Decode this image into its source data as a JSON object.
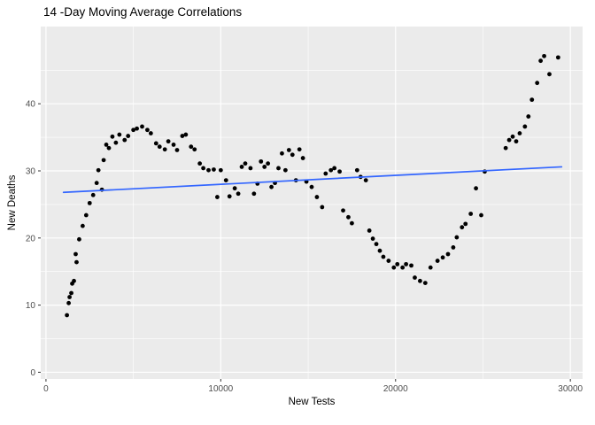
{
  "chart_data": {
    "type": "scatter",
    "title": "14 -Day Moving Average Correlations",
    "xlabel": "New Tests",
    "ylabel": "New Deaths",
    "xlim": [
      -300,
      30700
    ],
    "ylim": [
      -1,
      51.5
    ],
    "x_ticks": [
      0,
      10000,
      20000,
      30000
    ],
    "x_minor_ticks": [
      5000,
      15000,
      25000
    ],
    "y_ticks": [
      0,
      10,
      20,
      30,
      40
    ],
    "y_minor_ticks": [
      5,
      15,
      25,
      35,
      45
    ],
    "grid": true,
    "legend": "none",
    "panel_bg": "#EBEBEB",
    "grid_color": "#FFFFFF",
    "point_color": "#000000",
    "tick_label_color": "#4D4D4D",
    "tick_mark_color": "#333333",
    "trend": {
      "color": "#3366FF",
      "x1": 1000,
      "y1": 26.8,
      "x2": 29500,
      "y2": 30.6
    },
    "points": [
      [
        1200,
        8.5
      ],
      [
        1300,
        10.3
      ],
      [
        1350,
        11.2
      ],
      [
        1450,
        11.8
      ],
      [
        1500,
        13.2
      ],
      [
        1600,
        13.6
      ],
      [
        1700,
        17.6
      ],
      [
        1750,
        16.4
      ],
      [
        1900,
        19.8
      ],
      [
        2100,
        21.8
      ],
      [
        2300,
        23.4
      ],
      [
        2500,
        25.2
      ],
      [
        2700,
        26.4
      ],
      [
        2900,
        28.2
      ],
      [
        3000,
        30.1
      ],
      [
        3200,
        27.2
      ],
      [
        3300,
        31.6
      ],
      [
        3450,
        33.9
      ],
      [
        3600,
        33.4
      ],
      [
        3800,
        35.1
      ],
      [
        4000,
        34.2
      ],
      [
        4200,
        35.4
      ],
      [
        4500,
        34.6
      ],
      [
        4700,
        35.2
      ],
      [
        5000,
        36.1
      ],
      [
        5200,
        36.3
      ],
      [
        5500,
        36.6
      ],
      [
        5800,
        36.1
      ],
      [
        6000,
        35.6
      ],
      [
        6300,
        34.1
      ],
      [
        6500,
        33.6
      ],
      [
        6800,
        33.2
      ],
      [
        7000,
        34.4
      ],
      [
        7300,
        33.9
      ],
      [
        7500,
        33.1
      ],
      [
        7800,
        35.2
      ],
      [
        8000,
        35.4
      ],
      [
        8300,
        33.6
      ],
      [
        8500,
        33.2
      ],
      [
        8800,
        31.1
      ],
      [
        9000,
        30.4
      ],
      [
        9300,
        30.1
      ],
      [
        9600,
        30.2
      ],
      [
        9800,
        26.1
      ],
      [
        10000,
        30.1
      ],
      [
        10300,
        28.6
      ],
      [
        10500,
        26.2
      ],
      [
        10800,
        27.4
      ],
      [
        11000,
        26.6
      ],
      [
        11200,
        30.6
      ],
      [
        11400,
        31.1
      ],
      [
        11700,
        30.4
      ],
      [
        11900,
        26.6
      ],
      [
        12100,
        28.1
      ],
      [
        12300,
        31.4
      ],
      [
        12500,
        30.6
      ],
      [
        12700,
        31.1
      ],
      [
        12900,
        27.6
      ],
      [
        13100,
        28.2
      ],
      [
        13300,
        30.4
      ],
      [
        13500,
        32.6
      ],
      [
        13700,
        30.1
      ],
      [
        13900,
        33.1
      ],
      [
        14100,
        32.4
      ],
      [
        14300,
        28.6
      ],
      [
        14500,
        33.2
      ],
      [
        14700,
        31.9
      ],
      [
        14900,
        28.4
      ],
      [
        15200,
        27.6
      ],
      [
        15500,
        26.1
      ],
      [
        15800,
        24.6
      ],
      [
        16000,
        29.6
      ],
      [
        16300,
        30.1
      ],
      [
        16500,
        30.4
      ],
      [
        16800,
        29.9
      ],
      [
        17000,
        24.1
      ],
      [
        17300,
        23.1
      ],
      [
        17500,
        22.2
      ],
      [
        17800,
        30.1
      ],
      [
        18000,
        29.1
      ],
      [
        18300,
        28.6
      ],
      [
        18500,
        21.1
      ],
      [
        18700,
        19.9
      ],
      [
        18900,
        19.1
      ],
      [
        19100,
        18.1
      ],
      [
        19300,
        17.2
      ],
      [
        19600,
        16.6
      ],
      [
        19900,
        15.6
      ],
      [
        20100,
        16.1
      ],
      [
        20400,
        15.6
      ],
      [
        20600,
        16.1
      ],
      [
        20900,
        15.9
      ],
      [
        21100,
        14.1
      ],
      [
        21400,
        13.6
      ],
      [
        21700,
        13.3
      ],
      [
        22000,
        15.6
      ],
      [
        22400,
        16.6
      ],
      [
        22700,
        17.1
      ],
      [
        23000,
        17.6
      ],
      [
        23300,
        18.6
      ],
      [
        23500,
        20.1
      ],
      [
        23800,
        21.6
      ],
      [
        24000,
        22.1
      ],
      [
        24300,
        23.6
      ],
      [
        24600,
        27.4
      ],
      [
        24900,
        23.4
      ],
      [
        25100,
        29.9
      ],
      [
        26300,
        33.4
      ],
      [
        26500,
        34.6
      ],
      [
        26700,
        35.1
      ],
      [
        26900,
        34.4
      ],
      [
        27100,
        35.6
      ],
      [
        27400,
        36.6
      ],
      [
        27600,
        38.1
      ],
      [
        27800,
        40.6
      ],
      [
        28100,
        43.1
      ],
      [
        28300,
        46.4
      ],
      [
        28500,
        47.1
      ],
      [
        28800,
        44.4
      ],
      [
        29300,
        46.9
      ]
    ]
  }
}
